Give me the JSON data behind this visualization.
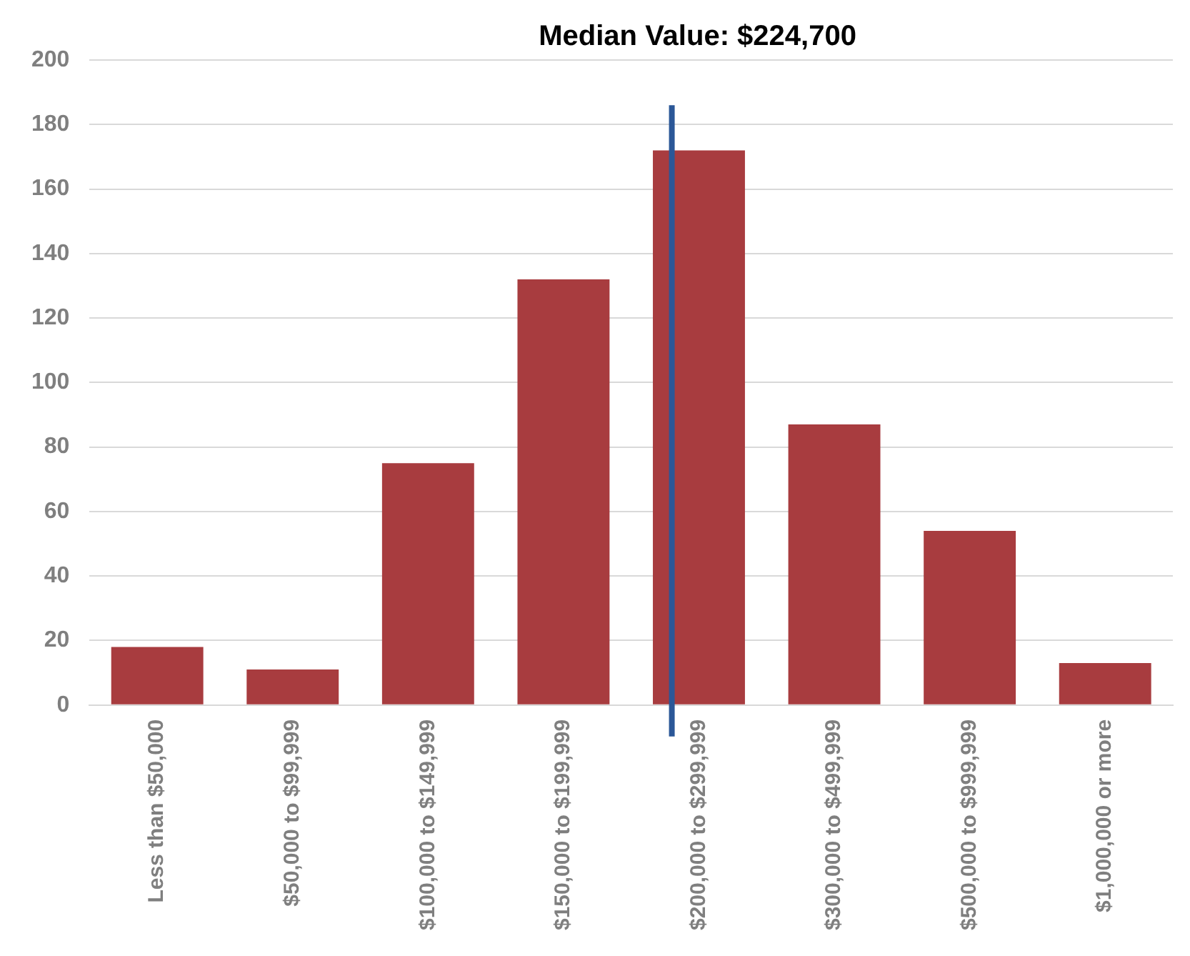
{
  "chart_data": {
    "type": "bar",
    "categories": [
      "Less than $50,000",
      "$50,000 to $99,999",
      "$100,000 to $149,999",
      "$150,000 to $199,999",
      "$200,000 to $299,999",
      "$300,000 to $499,999",
      "$500,000 to $999,999",
      "$1,000,000 or more"
    ],
    "values": [
      18,
      11,
      75,
      132,
      172,
      87,
      54,
      13
    ],
    "color": "#a83c3f",
    "ylim": [
      0,
      200
    ],
    "yticks": [
      0,
      20,
      40,
      60,
      80,
      100,
      120,
      140,
      160,
      180,
      200
    ],
    "grid": "y",
    "legend": false,
    "ref_lines": [
      {
        "axis": "x",
        "value": "$200,000 to $299,999",
        "label": "Median Value: $224,700",
        "color": "#2b5797"
      }
    ]
  }
}
